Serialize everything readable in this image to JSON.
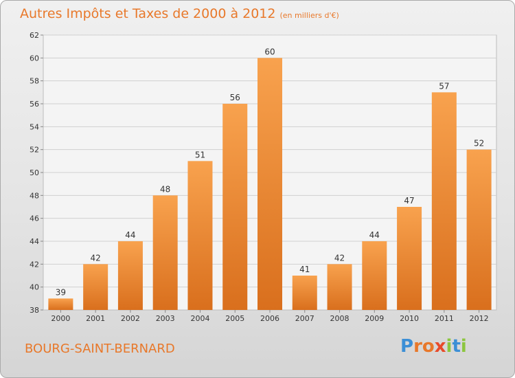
{
  "title": "Autres Impôts et Taxes de 2000 à 2012",
  "subtitle": "(en milliers d'€)",
  "commune": "BOURG-SAINT-BERNARD",
  "logo": {
    "letters": [
      "P",
      "r",
      "o",
      "x",
      "i",
      "t",
      "i"
    ],
    "colors": [
      "#3c8fd6",
      "#e8782a",
      "#e8782a",
      "#e84b2a",
      "#8cc63f",
      "#3c8fd6",
      "#8cc63f"
    ]
  },
  "colors": {
    "bar_top": "#f8a24e",
    "bar_bottom": "#d96f1d",
    "accent": "#e8782a"
  },
  "chart_data": {
    "type": "bar",
    "categories": [
      "2000",
      "2001",
      "2002",
      "2003",
      "2004",
      "2005",
      "2006",
      "2007",
      "2008",
      "2009",
      "2010",
      "2011",
      "2012"
    ],
    "values": [
      39,
      42,
      44,
      48,
      51,
      56,
      60,
      41,
      42,
      44,
      47,
      57,
      52
    ],
    "yticks": [
      38,
      40,
      42,
      44,
      46,
      48,
      50,
      52,
      54,
      56,
      58,
      60,
      62
    ],
    "ylim": [
      38,
      62
    ],
    "grid": true
  }
}
